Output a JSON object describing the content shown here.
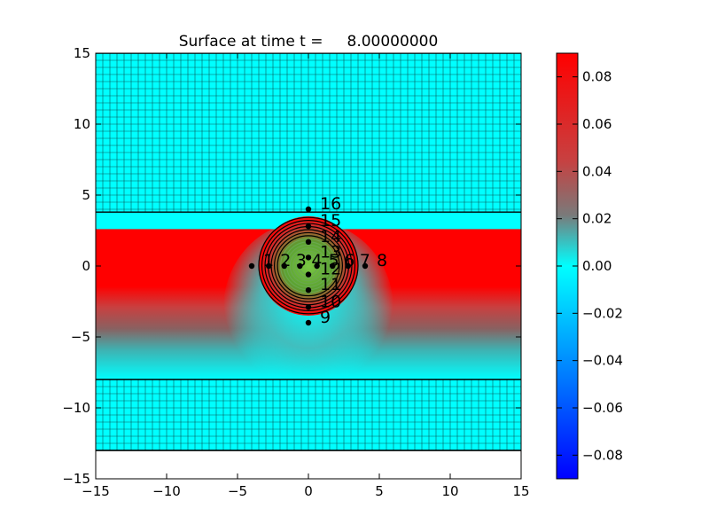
{
  "chart_data": {
    "type": "heatmap",
    "title": "Surface at time t =     8.00000000",
    "xlabel": "",
    "ylabel": "",
    "xlim": [
      -15,
      15
    ],
    "ylim": [
      -15,
      15
    ],
    "x_ticks": [
      -15,
      -10,
      -5,
      0,
      5,
      10,
      15
    ],
    "y_ticks": [
      -15,
      -10,
      -5,
      0,
      5,
      10,
      15
    ],
    "x_tick_labels": [
      "−15",
      "−10",
      "−5",
      "0",
      "5",
      "10",
      "15"
    ],
    "y_tick_labels": [
      "−15",
      "−10",
      "−5",
      "0",
      "5",
      "10",
      "15"
    ],
    "domain_y_range": [
      -13,
      15
    ],
    "grid_on": true,
    "grid_regions": [
      {
        "name": "upper fine grid",
        "y_range": [
          3.8,
          15
        ]
      },
      {
        "name": "lower fine grid",
        "y_range": [
          -13,
          -8
        ]
      }
    ],
    "grid_spacing": 0.5,
    "colorbar": {
      "range": [
        -0.09,
        0.09
      ],
      "ticks": [
        0.08,
        0.06,
        0.04,
        0.02,
        0.0,
        -0.02,
        -0.04,
        -0.06,
        -0.08
      ],
      "tick_labels": [
        "0.08",
        "0.06",
        "0.04",
        "0.02",
        "0.00",
        "−0.02",
        "−0.04",
        "−0.06",
        "−0.08"
      ],
      "colors": {
        "max": "#ff0000",
        "mid": "#00ffff",
        "min": "#0000ff"
      }
    },
    "surface_features": {
      "band_y_range": [
        -3.2,
        2.6
      ],
      "band_value": 0.09,
      "decay_tail_bottom_y": -8,
      "hump_center": [
        0,
        0
      ],
      "hump_radius": 3.5,
      "contour_colors": {
        "inner": "#6aa84f",
        "outer": "#000000"
      }
    },
    "gauges": [
      {
        "label": "1",
        "x": -4,
        "y": 0
      },
      {
        "label": "2",
        "x": -2.8,
        "y": 0
      },
      {
        "label": "3",
        "x": -1.7,
        "y": 0
      },
      {
        "label": "4",
        "x": -0.6,
        "y": 0
      },
      {
        "label": "5",
        "x": 0.6,
        "y": 0
      },
      {
        "label": "6",
        "x": 1.7,
        "y": 0
      },
      {
        "label": "7",
        "x": 2.8,
        "y": 0
      },
      {
        "label": "8",
        "x": 4,
        "y": 0
      },
      {
        "label": "9",
        "x": 0,
        "y": -4
      },
      {
        "label": "10",
        "x": 0,
        "y": -2.9
      },
      {
        "label": "11",
        "x": 0,
        "y": -1.7
      },
      {
        "label": "12",
        "x": 0,
        "y": -0.6
      },
      {
        "label": "13",
        "x": 0,
        "y": 0.6
      },
      {
        "label": "14",
        "x": 0,
        "y": 1.7
      },
      {
        "label": "15",
        "x": 0,
        "y": 2.8
      },
      {
        "label": "16",
        "x": 0,
        "y": 4
      }
    ]
  }
}
